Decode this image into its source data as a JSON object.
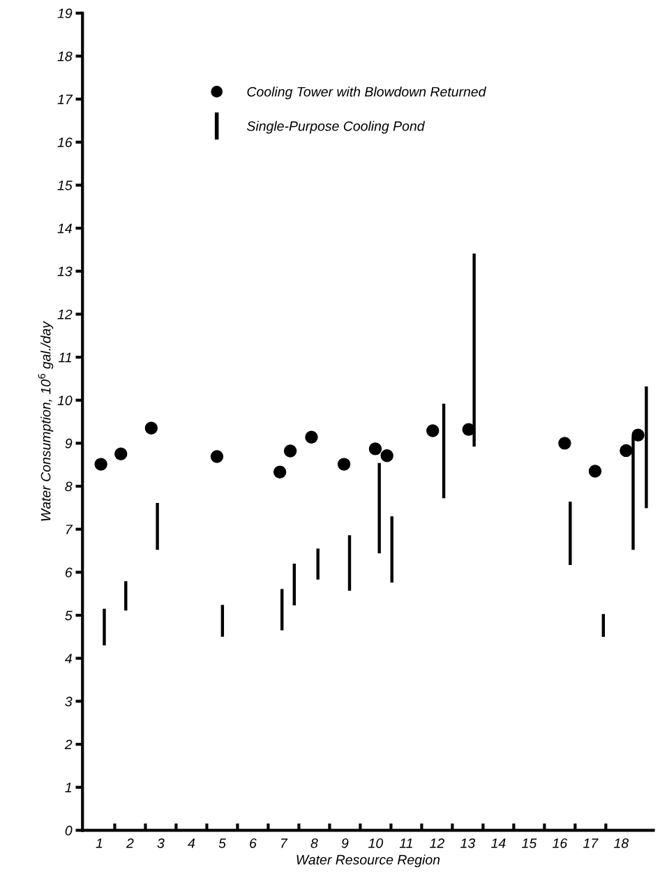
{
  "chart_data": {
    "type": "scatter",
    "xlabel": "Water Resource Region",
    "ylabel": "Water Consumption, 10$^{6}$ gal./day",
    "xlim": [
      0.45,
      19.05
    ],
    "ylim": [
      0,
      19
    ],
    "xticks": [
      {
        "value": 1,
        "label": "1"
      },
      {
        "value": 1.5,
        "label": null
      },
      {
        "value": 2,
        "label": "2"
      },
      {
        "value": 2.5,
        "label": null
      },
      {
        "value": 3,
        "label": "3"
      },
      {
        "value": 3.5,
        "label": null
      },
      {
        "value": 4,
        "label": "4"
      },
      {
        "value": 4.5,
        "label": null
      },
      {
        "value": 5,
        "label": "5"
      },
      {
        "value": 5.5,
        "label": null
      },
      {
        "value": 6,
        "label": "6"
      },
      {
        "value": 6.5,
        "label": null
      },
      {
        "value": 7,
        "label": "7"
      },
      {
        "value": 7.5,
        "label": null
      },
      {
        "value": 8,
        "label": "8"
      },
      {
        "value": 8.5,
        "label": null
      },
      {
        "value": 9,
        "label": "9"
      },
      {
        "value": 9.5,
        "label": null
      },
      {
        "value": 10,
        "label": "10"
      },
      {
        "value": 10.5,
        "label": null
      },
      {
        "value": 11,
        "label": "11"
      },
      {
        "value": 11.5,
        "label": null
      },
      {
        "value": 12,
        "label": "12"
      },
      {
        "value": 12.5,
        "label": null
      },
      {
        "value": 13,
        "label": "13"
      },
      {
        "value": 13.5,
        "label": null
      },
      {
        "value": 14,
        "label": "14"
      },
      {
        "value": 14.5,
        "label": null
      },
      {
        "value": 15,
        "label": "15"
      },
      {
        "value": 15.5,
        "label": null
      },
      {
        "value": 16,
        "label": "16"
      },
      {
        "value": 16.5,
        "label": null
      },
      {
        "value": 17,
        "label": "17"
      },
      {
        "value": 17.5,
        "label": null
      },
      {
        "value": 18,
        "label": "18"
      }
    ],
    "yticks": [
      0,
      1,
      2,
      3,
      4,
      5,
      6,
      7,
      8,
      9,
      10,
      11,
      12,
      13,
      14,
      15,
      16,
      17,
      18,
      19
    ],
    "grid": false,
    "legend": "top",
    "series": [
      {
        "name": "Cooling Tower with Blowdown Returned",
        "color": "#000000",
        "marker": "circle",
        "x": [
          1.05,
          1.7,
          2.69,
          4.83,
          6.88,
          7.22,
          7.91,
          8.97,
          9.99,
          10.37,
          11.86,
          13.03,
          16.16,
          17.15,
          18.16,
          18.55
        ],
        "values": [
          8.51,
          8.75,
          9.35,
          8.69,
          8.33,
          8.82,
          9.14,
          8.51,
          8.87,
          8.71,
          9.29,
          9.32,
          9.0,
          8.35,
          8.83,
          9.19
        ]
      },
      {
        "name": "Single-Purpose Cooling Pond",
        "type": "bar",
        "color": "#000000",
        "x": [
          1.16,
          1.86,
          2.89,
          5.01,
          6.95,
          7.35,
          8.12,
          9.15,
          10.12,
          10.53,
          12.22,
          13.21,
          16.34,
          17.42,
          18.39,
          18.82
        ],
        "base": [
          4.3,
          5.11,
          6.52,
          4.5,
          4.65,
          5.23,
          5.83,
          5.57,
          6.44,
          5.76,
          7.72,
          8.92,
          6.17,
          4.5,
          6.52,
          7.49
        ],
        "values": [
          0.85,
          0.68,
          1.09,
          0.74,
          0.96,
          0.97,
          0.72,
          1.29,
          2.1,
          1.54,
          2.2,
          4.49,
          1.47,
          0.53,
          2.64,
          2.83
        ]
      }
    ]
  }
}
